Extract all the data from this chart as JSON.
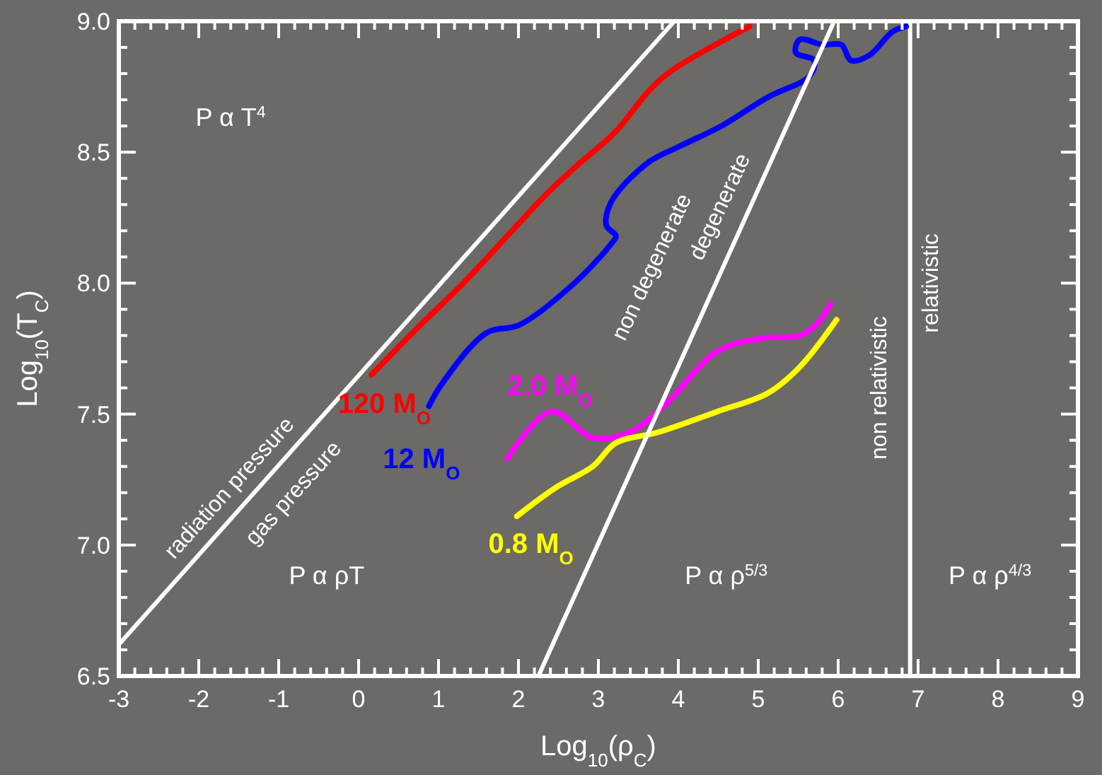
{
  "chart_data": {
    "type": "line",
    "xlabel": "Log$_{10}$(ρ$_{C}$)",
    "ylabel": "Log$_{10}$(T$_{C}$)",
    "xlim": [
      -3,
      9
    ],
    "ylim": [
      6.5,
      9
    ],
    "xticks": [
      -3,
      {
        "value": -2.8,
        "label": null
      },
      {
        "value": -2.6,
        "label": null
      },
      {
        "value": -2.4,
        "label": null
      },
      {
        "value": -2.2,
        "label": null
      },
      -2,
      {
        "value": -1.8,
        "label": null
      },
      {
        "value": -1.6,
        "label": null
      },
      {
        "value": -1.4,
        "label": null
      },
      {
        "value": -1.2,
        "label": null
      },
      -1,
      {
        "value": -0.8,
        "label": null
      },
      {
        "value": -0.6,
        "label": null
      },
      {
        "value": -0.4,
        "label": null
      },
      {
        "value": -0.2,
        "label": null
      },
      0,
      {
        "value": 0.2,
        "label": null
      },
      {
        "value": 0.4,
        "label": null
      },
      {
        "value": 0.6,
        "label": null
      },
      {
        "value": 0.8,
        "label": null
      },
      1,
      {
        "value": 1.2,
        "label": null
      },
      {
        "value": 1.4,
        "label": null
      },
      {
        "value": 1.6,
        "label": null
      },
      {
        "value": 1.8,
        "label": null
      },
      2,
      {
        "value": 2.2,
        "label": null
      },
      {
        "value": 2.4,
        "label": null
      },
      {
        "value": 2.6,
        "label": null
      },
      {
        "value": 2.8,
        "label": null
      },
      3,
      {
        "value": 3.2,
        "label": null
      },
      {
        "value": 3.4,
        "label": null
      },
      {
        "value": 3.6,
        "label": null
      },
      {
        "value": 3.8,
        "label": null
      },
      4,
      {
        "value": 4.2,
        "label": null
      },
      {
        "value": 4.4,
        "label": null
      },
      {
        "value": 4.6,
        "label": null
      },
      {
        "value": 4.8,
        "label": null
      },
      5,
      {
        "value": 5.2,
        "label": null
      },
      {
        "value": 5.4,
        "label": null
      },
      {
        "value": 5.6,
        "label": null
      },
      {
        "value": 5.8,
        "label": null
      },
      6,
      {
        "value": 6.2,
        "label": null
      },
      {
        "value": 6.4,
        "label": null
      },
      {
        "value": 6.6,
        "label": null
      },
      {
        "value": 6.8,
        "label": null
      },
      7,
      {
        "value": 7.2,
        "label": null
      },
      {
        "value": 7.4,
        "label": null
      },
      {
        "value": 7.6,
        "label": null
      },
      {
        "value": 7.8,
        "label": null
      },
      8,
      {
        "value": 8.2,
        "label": null
      },
      {
        "value": 8.4,
        "label": null
      },
      {
        "value": 8.6,
        "label": null
      },
      {
        "value": 8.8,
        "label": null
      },
      9
    ],
    "yticks": [
      {
        "value": 6.5,
        "label": "6.5"
      },
      {
        "value": 6.6,
        "label": null
      },
      {
        "value": 6.7,
        "label": null
      },
      {
        "value": 6.8,
        "label": null
      },
      {
        "value": 6.9,
        "label": null
      },
      {
        "value": 7,
        "label": "7.0"
      },
      {
        "value": 7.1,
        "label": null
      },
      {
        "value": 7.2,
        "label": null
      },
      {
        "value": 7.3,
        "label": null
      },
      {
        "value": 7.4,
        "label": null
      },
      {
        "value": 7.5,
        "label": "7.5"
      },
      {
        "value": 7.6,
        "label": null
      },
      {
        "value": 7.7,
        "label": null
      },
      {
        "value": 7.8,
        "label": null
      },
      {
        "value": 7.9,
        "label": null
      },
      {
        "value": 8,
        "label": "8.0"
      },
      {
        "value": 8.1,
        "label": null
      },
      {
        "value": 8.2,
        "label": null
      },
      {
        "value": 8.3,
        "label": null
      },
      {
        "value": 8.4,
        "label": null
      },
      {
        "value": 8.5,
        "label": "8.5"
      },
      {
        "value": 8.6,
        "label": null
      },
      {
        "value": 8.7,
        "label": null
      },
      {
        "value": 8.8,
        "label": null
      },
      {
        "value": 8.9,
        "label": null
      },
      {
        "value": 9,
        "label": "9.0"
      }
    ],
    "series": [
      {
        "name": "120 M$_{O}$",
        "color": "#ff0000",
        "x": [
          0.16,
          0.74,
          1.31,
          1.89,
          2.35,
          2.7,
          3.22,
          3.62,
          3.91,
          4.89
        ],
        "values": [
          7.65,
          7.83,
          8.0,
          8.19,
          8.34,
          8.44,
          8.58,
          8.73,
          8.81,
          8.98
        ]
      },
      {
        "name": "12 M$_{O}$",
        "color": "#0000ff",
        "x": [
          0.88,
          1.03,
          1.6,
          2.01,
          2.7,
          3.16,
          3.22,
          3.1,
          3.16,
          3.62,
          4.0,
          4.54,
          5.12,
          5.64,
          5.7,
          5.47,
          5.52,
          5.81,
          6.04,
          6.16,
          6.39,
          6.68,
          6.85
        ],
        "values": [
          7.53,
          7.61,
          7.81,
          7.84,
          8.0,
          8.15,
          8.18,
          8.22,
          8.31,
          8.46,
          8.52,
          8.6,
          8.71,
          8.79,
          8.85,
          8.88,
          8.93,
          8.91,
          8.91,
          8.85,
          8.87,
          8.96,
          8.98
        ]
      },
      {
        "name": "2.0 M$_{O}$",
        "color": "#ff00ff",
        "x": [
          1.86,
          2.41,
          2.93,
          3.39,
          3.85,
          4.49,
          5.06,
          5.52,
          5.75,
          5.9
        ],
        "values": [
          7.33,
          7.51,
          7.41,
          7.43,
          7.54,
          7.74,
          7.79,
          7.8,
          7.85,
          7.92
        ]
      },
      {
        "name": "0.8 M$_{O}$",
        "color": "#ffff00",
        "x": [
          1.98,
          2.47,
          2.93,
          3.22,
          3.74,
          4.49,
          5.12,
          5.52,
          5.98
        ],
        "values": [
          7.11,
          7.22,
          7.3,
          7.39,
          7.43,
          7.51,
          7.58,
          7.68,
          7.86
        ]
      },
      {
        "color": "#ffffff",
        "x": [
          -3,
          3.95
        ],
        "values": [
          6.62,
          9
        ]
      },
      {
        "color": "#ffffff",
        "x": [
          2.25,
          5.95
        ],
        "values": [
          6.5,
          9
        ]
      }
    ],
    "ref_lines": [
      {
        "axis": "x",
        "value": 6.9,
        "color": "#ffffff"
      }
    ],
    "annotations": [
      "P α T$^{4}$",
      "P α ρT",
      "P α ρ$^{5/3}$",
      "P α ρ$^{4/3}$",
      "radiation pressure",
      "gas pressure",
      "non degenerate",
      "degenerate",
      "non relativistic",
      "relativistic"
    ]
  }
}
